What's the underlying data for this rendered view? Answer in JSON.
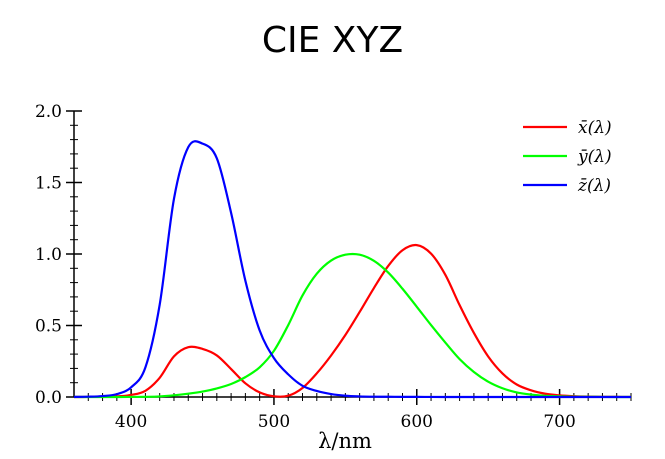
{
  "chart_data": {
    "type": "line",
    "title": "CIE XYZ",
    "xlabel": "λ/nm",
    "ylabel": "",
    "xlim": [
      360,
      750
    ],
    "ylim": [
      0,
      2.0
    ],
    "x_ticks": [
      400,
      500,
      600,
      700
    ],
    "x_tick_labels": [
      "400",
      "500",
      "600",
      "700"
    ],
    "y_ticks": [
      0,
      0.5,
      1.0,
      1.5,
      2.0
    ],
    "y_tick_labels": [
      "0.0",
      "0.5",
      "1.0",
      "1.5",
      "2.0"
    ],
    "grid": false,
    "legend_position": "top-right",
    "x": [
      360,
      370,
      380,
      390,
      400,
      410,
      420,
      430,
      440,
      450,
      460,
      470,
      480,
      490,
      500,
      510,
      520,
      530,
      540,
      550,
      560,
      570,
      580,
      590,
      600,
      610,
      620,
      630,
      640,
      650,
      660,
      670,
      680,
      690,
      700,
      710,
      720,
      730,
      740,
      750
    ],
    "series": [
      {
        "name": "x̄(λ)",
        "color": "#ff0000",
        "values": [
          0.0001,
          0.0004,
          0.0014,
          0.0042,
          0.0143,
          0.0435,
          0.1344,
          0.2839,
          0.3483,
          0.3362,
          0.2908,
          0.1954,
          0.0956,
          0.032,
          0.0049,
          0.0093,
          0.0633,
          0.1655,
          0.2904,
          0.4334,
          0.5945,
          0.7621,
          0.9163,
          1.0263,
          1.0622,
          1.0026,
          0.8544,
          0.6424,
          0.4479,
          0.2835,
          0.1649,
          0.0874,
          0.0468,
          0.0227,
          0.0114,
          0.0058,
          0.0029,
          0.0014,
          0.0007,
          0.0003
        ]
      },
      {
        "name": "ȳ(λ)",
        "color": "#00ff00",
        "values": [
          0.0,
          0.0,
          0.0,
          0.0001,
          0.0004,
          0.0012,
          0.004,
          0.0116,
          0.023,
          0.038,
          0.06,
          0.091,
          0.139,
          0.208,
          0.323,
          0.503,
          0.71,
          0.862,
          0.954,
          0.995,
          0.995,
          0.952,
          0.87,
          0.757,
          0.631,
          0.503,
          0.381,
          0.265,
          0.175,
          0.107,
          0.061,
          0.032,
          0.017,
          0.0082,
          0.0041,
          0.0021,
          0.001,
          0.0005,
          0.0002,
          0.0001
        ]
      },
      {
        "name": "z̄(λ)",
        "color": "#0000ff",
        "values": [
          0.0006,
          0.002,
          0.0065,
          0.0201,
          0.0679,
          0.2074,
          0.6456,
          1.3856,
          1.7471,
          1.7721,
          1.6692,
          1.2876,
          0.813,
          0.4652,
          0.272,
          0.1582,
          0.0782,
          0.0422,
          0.0203,
          0.0087,
          0.0039,
          0.0021,
          0.0017,
          0.0011,
          0.0008,
          0.0003,
          0.0002,
          0.0,
          0.0,
          0.0,
          0.0,
          0.0,
          0.0,
          0.0,
          0.0,
          0.0,
          0.0,
          0.0,
          0.0,
          0.0
        ]
      }
    ]
  }
}
